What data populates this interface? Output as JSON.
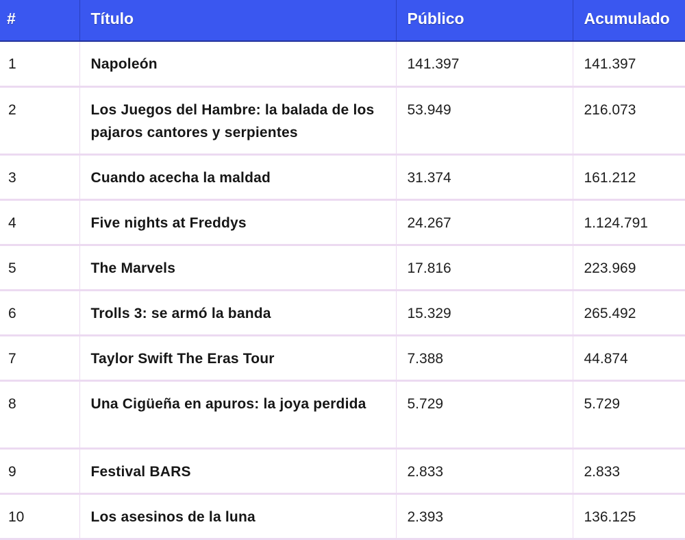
{
  "table": {
    "headers": {
      "rank": "#",
      "title": "Título",
      "public": "Público",
      "accumulated": "Acumulado"
    },
    "rows": [
      {
        "rank": "1",
        "title": "Napoleón",
        "public": "141.397",
        "accumulated": "141.397"
      },
      {
        "rank": "2",
        "title": "Los Juegos del Hambre: la balada de los pajaros cantores y serpientes",
        "public": "53.949",
        "accumulated": "216.073"
      },
      {
        "rank": "3",
        "title": "Cuando acecha la maldad",
        "public": "31.374",
        "accumulated": "161.212"
      },
      {
        "rank": "4",
        "title": "Five nights at Freddys",
        "public": "24.267",
        "accumulated": "1.124.791"
      },
      {
        "rank": "5",
        "title": "The Marvels",
        "public": "17.816",
        "accumulated": "223.969"
      },
      {
        "rank": "6",
        "title": "Trolls 3: se armó la banda",
        "public": "15.329",
        "accumulated": "265.492"
      },
      {
        "rank": "7",
        "title": "Taylor Swift The Eras Tour",
        "public": "7.388",
        "accumulated": "44.874"
      },
      {
        "rank": "8",
        "title": "Una Cigüeña en apuros: la joya perdida",
        "public": "5.729",
        "accumulated": "5.729"
      },
      {
        "rank": "9",
        "title": "Festival BARS",
        "public": "2.833",
        "accumulated": "2.833"
      },
      {
        "rank": "10",
        "title": "Los asesinos de la luna",
        "public": "2.393",
        "accumulated": "136.125"
      }
    ]
  },
  "colors": {
    "header_background": "#3a57f0",
    "header_text": "#ffffff",
    "row_divider": "#ecdaf1"
  }
}
